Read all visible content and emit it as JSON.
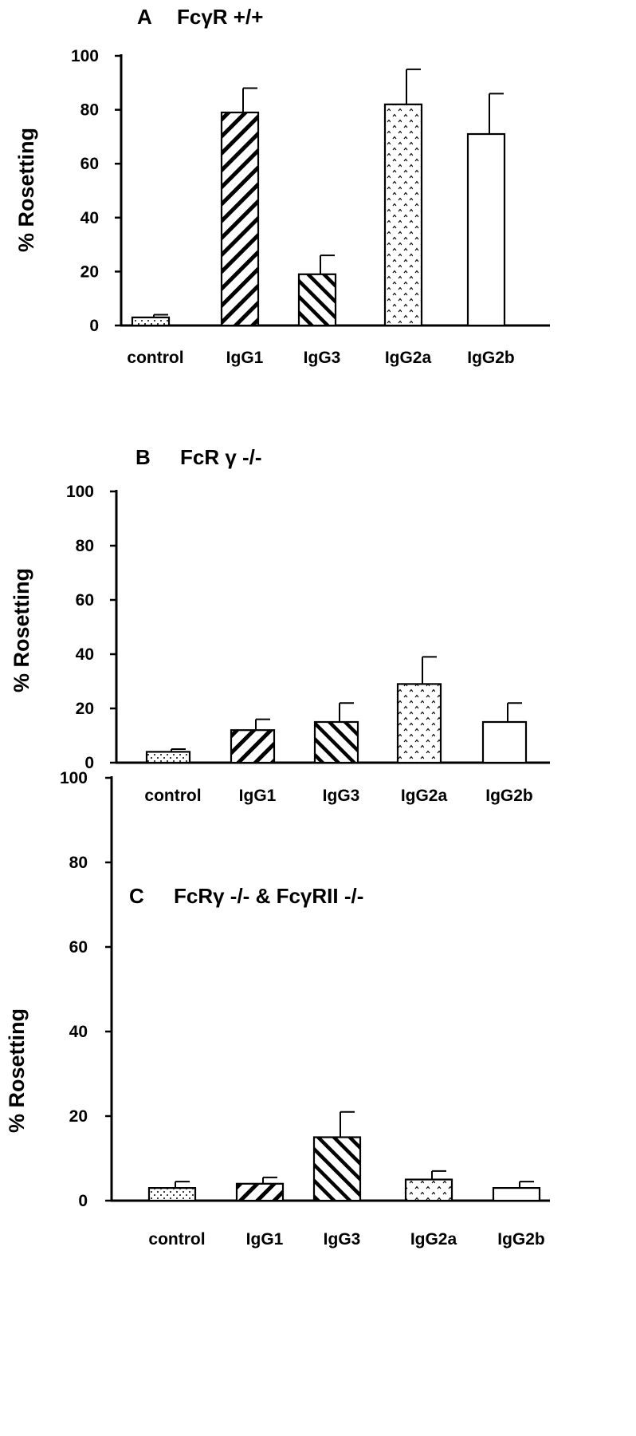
{
  "chart_data": [
    {
      "type": "bar",
      "panel_letter": "A",
      "title": "FcγR +/+",
      "ylabel": "% Rosetting",
      "xlabel": "",
      "ylim": [
        0,
        100
      ],
      "yticks": [
        "0",
        "20",
        "40",
        "60",
        "80",
        "100"
      ],
      "categories": [
        "control",
        "IgG1",
        "IgG3",
        "IgG2a",
        "IgG2b"
      ],
      "values": [
        3,
        79,
        19,
        82,
        71
      ],
      "errors": [
        1,
        9,
        7,
        13,
        15
      ],
      "fills": [
        "dots",
        "diag-wide",
        "diag-narrow",
        "carets",
        "white"
      ]
    },
    {
      "type": "bar",
      "panel_letter": "B",
      "title": "FcR γ -/-",
      "ylabel": "% Rosetting",
      "xlabel": "",
      "ylim": [
        0,
        100
      ],
      "yticks": [
        "0",
        "20",
        "40",
        "60",
        "80",
        "100"
      ],
      "categories": [
        "control",
        "IgG1",
        "IgG3",
        "IgG2a",
        "IgG2b"
      ],
      "values": [
        4,
        12,
        15,
        29,
        15
      ],
      "errors": [
        1,
        4,
        7,
        10,
        7
      ],
      "fills": [
        "dots",
        "diag-wide",
        "diag-narrow",
        "carets",
        "white"
      ]
    },
    {
      "type": "bar",
      "panel_letter": "C",
      "title": "FcRγ -/- & FcγRII -/-",
      "ylabel": "% Rosetting",
      "xlabel": "",
      "ylim": [
        0,
        100
      ],
      "yticks": [
        "0",
        "20",
        "40",
        "60",
        "80",
        "100"
      ],
      "categories": [
        "control",
        "IgG1",
        "IgG3",
        "IgG2a",
        "IgG2b"
      ],
      "values": [
        3,
        4,
        15,
        5,
        3
      ],
      "errors": [
        1.5,
        1.5,
        6,
        2,
        1.5
      ],
      "fills": [
        "dots",
        "diag-wide",
        "diag-narrow",
        "carets",
        "white"
      ]
    }
  ]
}
